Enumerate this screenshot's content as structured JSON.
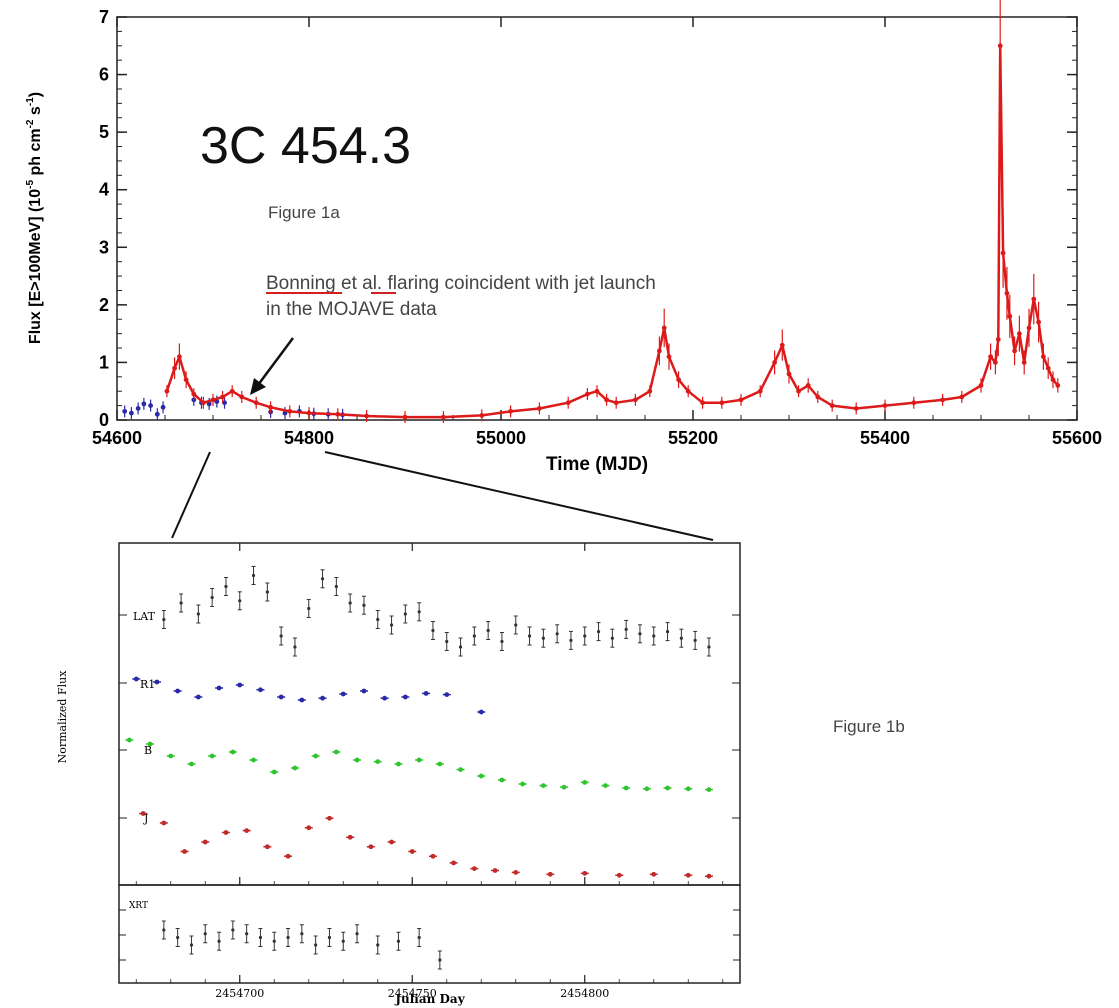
{
  "figure": {
    "source_name": "3C 454.3",
    "label_1a": "Figure 1a",
    "label_1b": "Figure 1b",
    "annotation_line1_name": "Bonning",
    "annotation_line1_mid": " et ",
    "annotation_line1_al": "al.",
    "annotation_line1_rest": " flaring coincident with jet launch",
    "annotation_line2": "in the MOJAVE data",
    "colors": {
      "axis": "#222222",
      "fermi": "#dd1a1a",
      "egret": "#2a2aa8",
      "lat": "#333333",
      "r_band": "#2a2aa8",
      "b_band": "#2fc42f",
      "j_band": "#c02a2a",
      "underline": "#d02020"
    }
  },
  "chart_data": [
    {
      "type": "line",
      "xlabel": "Time (MJD)",
      "ylabel": "Flux [E>100MeV] (10",
      "ylabel_exp1": "-5",
      "ylabel_mid": " ph cm",
      "ylabel_exp2": "-2",
      "ylabel_end": " s",
      "ylabel_exp3": "-1",
      "ylabel_close": ")",
      "xlim": [
        54600,
        55600
      ],
      "ylim": [
        0,
        7
      ],
      "xticks": [
        "54600",
        "54800",
        "55000",
        "55200",
        "55400",
        "55600"
      ],
      "yticks": [
        "0",
        "1",
        "2",
        "3",
        "4",
        "5",
        "6",
        "7"
      ],
      "series": [
        {
          "color_key": "egret",
          "x": [
            54608,
            54615,
            54622,
            54628,
            54635,
            54642,
            54648,
            54680,
            54688,
            54696,
            54704,
            54712,
            54760,
            54775,
            54790,
            54805,
            54820,
            54835
          ],
          "y": [
            0.15,
            0.12,
            0.2,
            0.28,
            0.25,
            0.1,
            0.22,
            0.35,
            0.3,
            0.28,
            0.32,
            0.3,
            0.14,
            0.12,
            0.15,
            0.11,
            0.1,
            0.09
          ]
        },
        {
          "color_key": "fermi",
          "x": [
            54652,
            54660,
            54665,
            54672,
            54680,
            54690,
            54700,
            54710,
            54720,
            54730,
            54745,
            54760,
            54780,
            54800,
            54830,
            54860,
            54900,
            54940,
            54980,
            55010,
            55040,
            55070,
            55090,
            55100,
            55110,
            55120,
            55140,
            55155,
            55165,
            55170,
            55175,
            55185,
            55195,
            55210,
            55230,
            55250,
            55270,
            55285,
            55293,
            55300,
            55310,
            55320,
            55330,
            55345,
            55370,
            55400,
            55430,
            55460,
            55480,
            55500,
            55510,
            55515,
            55518,
            55520,
            55523,
            55527,
            55530,
            55535,
            55540,
            55545,
            55550,
            55555,
            55560,
            55565,
            55570,
            55575,
            55580
          ],
          "y": [
            0.5,
            0.9,
            1.1,
            0.7,
            0.45,
            0.3,
            0.35,
            0.4,
            0.5,
            0.4,
            0.3,
            0.22,
            0.15,
            0.12,
            0.1,
            0.07,
            0.05,
            0.05,
            0.08,
            0.15,
            0.2,
            0.3,
            0.45,
            0.5,
            0.35,
            0.3,
            0.35,
            0.5,
            1.2,
            1.6,
            1.1,
            0.7,
            0.5,
            0.3,
            0.3,
            0.35,
            0.5,
            1.0,
            1.3,
            0.8,
            0.5,
            0.6,
            0.4,
            0.25,
            0.2,
            0.25,
            0.3,
            0.35,
            0.4,
            0.6,
            1.1,
            1.0,
            1.4,
            6.5,
            2.9,
            2.2,
            1.8,
            1.2,
            1.5,
            1.0,
            1.6,
            2.1,
            1.7,
            1.1,
            0.9,
            0.7,
            0.6
          ]
        }
      ]
    },
    {
      "type": "scatter",
      "xlabel": "Julian Day",
      "ylabel": "Normalized Flux",
      "xticks": [
        "2454700",
        "2454750",
        "2454800"
      ],
      "xlim": [
        2454665,
        2454845
      ],
      "series": [
        {
          "name": "LAT",
          "color_key": "lat",
          "x": [
            2454678,
            2454683,
            2454688,
            2454692,
            2454696,
            2454700,
            2454704,
            2454708,
            2454712,
            2454716,
            2454720,
            2454724,
            2454728,
            2454732,
            2454736,
            2454740,
            2454744,
            2454748,
            2454752,
            2454756,
            2454760,
            2454764,
            2454768,
            2454772,
            2454776,
            2454780,
            2454784,
            2454788,
            2454792,
            2454796,
            2454800,
            2454804,
            2454808,
            2454812,
            2454816,
            2454820,
            2454824,
            2454828,
            2454832,
            2454836
          ],
          "y": [
            0.55,
            0.7,
            0.6,
            0.75,
            0.85,
            0.72,
            0.95,
            0.8,
            0.4,
            0.3,
            0.65,
            0.92,
            0.85,
            0.7,
            0.68,
            0.55,
            0.5,
            0.6,
            0.62,
            0.45,
            0.35,
            0.3,
            0.4,
            0.45,
            0.35,
            0.5,
            0.4,
            0.38,
            0.42,
            0.36,
            0.4,
            0.44,
            0.38,
            0.46,
            0.42,
            0.4,
            0.44,
            0.38,
            0.36,
            0.3
          ]
        },
        {
          "name": "R1",
          "color_key": "r_band",
          "x": [
            2454670,
            2454676,
            2454682,
            2454688,
            2454694,
            2454700,
            2454706,
            2454712,
            2454718,
            2454724,
            2454730,
            2454736,
            2454742,
            2454748,
            2454754,
            2454760,
            2454770
          ],
          "y": [
            0.6,
            0.55,
            0.4,
            0.3,
            0.45,
            0.5,
            0.42,
            0.3,
            0.25,
            0.28,
            0.35,
            0.4,
            0.28,
            0.3,
            0.36,
            0.34,
            0.05
          ]
        },
        {
          "name": "B",
          "color_key": "b_band",
          "x": [
            2454668,
            2454674,
            2454680,
            2454686,
            2454692,
            2454698,
            2454704,
            2454710,
            2454716,
            2454722,
            2454728,
            2454734,
            2454740,
            2454746,
            2454752,
            2454758,
            2454764,
            2454770,
            2454776,
            2454782,
            2454788,
            2454794,
            2454800,
            2454806,
            2454812,
            2454818,
            2454824,
            2454830,
            2454836
          ],
          "y": [
            0.75,
            0.7,
            0.55,
            0.45,
            0.55,
            0.6,
            0.5,
            0.35,
            0.4,
            0.55,
            0.6,
            0.5,
            0.48,
            0.45,
            0.5,
            0.45,
            0.38,
            0.3,
            0.25,
            0.2,
            0.18,
            0.16,
            0.22,
            0.18,
            0.15,
            0.14,
            0.15,
            0.14,
            0.13
          ]
        },
        {
          "name": "J",
          "color_key": "j_band",
          "x": [
            2454672,
            2454678,
            2454684,
            2454690,
            2454696,
            2454702,
            2454708,
            2454714,
            2454720,
            2454726,
            2454732,
            2454738,
            2454744,
            2454750,
            2454756,
            2454762,
            2454768,
            2454774,
            2454780,
            2454790,
            2454800,
            2454810,
            2454820,
            2454830,
            2454836
          ],
          "y": [
            0.7,
            0.6,
            0.3,
            0.4,
            0.5,
            0.52,
            0.35,
            0.25,
            0.55,
            0.65,
            0.45,
            0.35,
            0.4,
            0.3,
            0.25,
            0.18,
            0.12,
            0.1,
            0.08,
            0.06,
            0.07,
            0.05,
            0.06,
            0.05,
            0.04
          ]
        },
        {
          "name": "XRT",
          "color_key": "lat",
          "x": [
            2454678,
            2454682,
            2454686,
            2454690,
            2454694,
            2454698,
            2454702,
            2454706,
            2454710,
            2454714,
            2454718,
            2454722,
            2454726,
            2454730,
            2454734,
            2454740,
            2454746,
            2454752,
            2454758
          ],
          "y": [
            0.6,
            0.5,
            0.4,
            0.55,
            0.45,
            0.6,
            0.55,
            0.5,
            0.45,
            0.5,
            0.55,
            0.4,
            0.5,
            0.45,
            0.55,
            0.4,
            0.45,
            0.5,
            0.2
          ]
        }
      ]
    }
  ]
}
